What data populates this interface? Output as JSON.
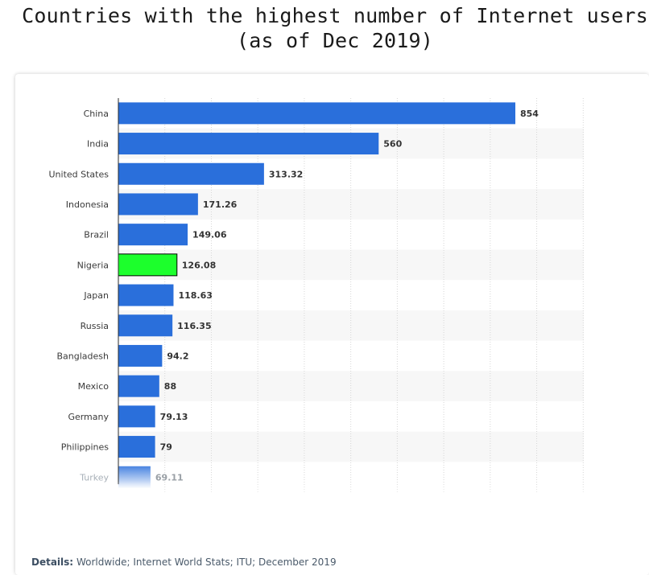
{
  "title_line1": "Countries with the highest number of Internet users",
  "title_line2": "(as of Dec 2019)",
  "details": {
    "label": "Details:",
    "text": "Worldwide; Internet World Stats; ITU; December 2019"
  },
  "colors": {
    "bar": "#2a6fdb",
    "highlight": "#1cff2c",
    "stripe": "#f7f7f7",
    "grid": "#d6d6d6",
    "axis": "#2b2b2b"
  },
  "chart_data": {
    "type": "bar",
    "orientation": "horizontal",
    "title": "Countries with the highest number of Internet users (as of Dec 2019)",
    "xlabel": "",
    "ylabel": "",
    "xlim": [
      0,
      1000
    ],
    "grid": true,
    "highlighted_category": "Nigeria",
    "categories": [
      "China",
      "India",
      "United States",
      "Indonesia",
      "Brazil",
      "Nigeria",
      "Japan",
      "Russia",
      "Bangladesh",
      "Mexico",
      "Germany",
      "Philippines",
      "Turkey"
    ],
    "values": [
      854,
      560,
      313.32,
      171.26,
      149.06,
      126.08,
      118.63,
      116.35,
      94.2,
      88,
      79.13,
      79,
      69.11
    ],
    "value_labels": [
      "854",
      "560",
      "313.32",
      "171.26",
      "149.06",
      "126.08",
      "118.63",
      "116.35",
      "94.2",
      "88",
      "79.13",
      "79",
      "69.11"
    ]
  }
}
